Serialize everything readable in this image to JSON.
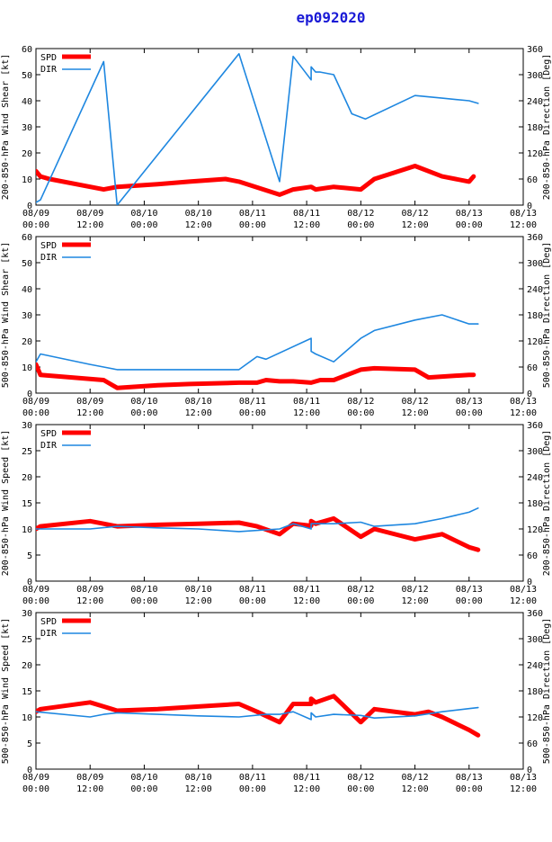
{
  "figure_title": "ep092020",
  "colors": {
    "spd": "#ff0000",
    "dir": "#1e87e0",
    "title": "#1a1ad6"
  },
  "x_ticks": [
    {
      "date": "08/09",
      "time": "00:00"
    },
    {
      "date": "08/09",
      "time": "12:00"
    },
    {
      "date": "08/10",
      "time": "00:00"
    },
    {
      "date": "08/10",
      "time": "12:00"
    },
    {
      "date": "08/11",
      "time": "00:00"
    },
    {
      "date": "08/11",
      "time": "12:00"
    },
    {
      "date": "08/12",
      "time": "00:00"
    },
    {
      "date": "08/12",
      "time": "12:00"
    },
    {
      "date": "08/13",
      "time": "00:00"
    },
    {
      "date": "08/13",
      "time": "12:00"
    }
  ],
  "chart_data": [
    {
      "type": "line",
      "title": "",
      "xlabel": "",
      "ylabel_left": "200-850-hPa Wind Shear [kt]",
      "ylabel_right": "200-850-hPa Direction [Deg]",
      "xlim": [
        0,
        108
      ],
      "ylim_left": [
        0,
        60
      ],
      "ylim_right": [
        0,
        360
      ],
      "yticks_left": [
        "0",
        "10",
        "20",
        "30",
        "40",
        "50",
        "60"
      ],
      "yticks_right": [
        "0",
        "60",
        "120",
        "180",
        "240",
        "300",
        "360"
      ],
      "legend": [
        "SPD",
        "DIR"
      ],
      "series": [
        {
          "name": "SPD",
          "axis": "left",
          "x": [
            0,
            1,
            3,
            15,
            18,
            27,
            34,
            42,
            45,
            54,
            57,
            61,
            62,
            66,
            72,
            75,
            84,
            90,
            96,
            97
          ],
          "y": [
            13,
            11,
            10,
            6,
            7,
            8,
            9,
            10,
            9,
            4,
            6,
            7,
            6,
            7,
            6,
            10,
            15,
            11,
            9,
            11
          ]
        },
        {
          "name": "DIR",
          "axis": "left",
          "x": [
            0,
            1,
            15,
            18,
            45,
            54,
            57,
            61,
            61,
            62,
            63,
            66,
            70,
            73,
            84,
            90,
            96,
            98
          ],
          "y": [
            1,
            2,
            55,
            0,
            58,
            9,
            57,
            48,
            53,
            51,
            51,
            50,
            35,
            33,
            42,
            41,
            40,
            39
          ]
        }
      ]
    },
    {
      "type": "line",
      "title": "",
      "xlabel": "",
      "ylabel_left": "500-850-hPa Wind Shear [kt]",
      "ylabel_right": "500-850-hPa Direction [Deg]",
      "xlim": [
        0,
        108
      ],
      "ylim_left": [
        0,
        60
      ],
      "ylim_right": [
        0,
        360
      ],
      "yticks_left": [
        "0",
        "10",
        "20",
        "30",
        "40",
        "50",
        "60"
      ],
      "yticks_right": [
        "0",
        "60",
        "120",
        "180",
        "240",
        "300",
        "360"
      ],
      "legend": [
        "SPD",
        "DIR"
      ],
      "series": [
        {
          "name": "SPD",
          "axis": "left",
          "x": [
            0,
            1,
            15,
            18,
            27,
            34,
            45,
            49,
            51,
            54,
            57,
            61,
            63,
            66,
            72,
            75,
            84,
            87,
            96,
            97
          ],
          "y": [
            11,
            7,
            5,
            2,
            3,
            3.5,
            4,
            4,
            5,
            4.5,
            4.5,
            4,
            5,
            5,
            9,
            9.5,
            9,
            6,
            7,
            7
          ]
        },
        {
          "name": "DIR",
          "axis": "left",
          "x": [
            0,
            1,
            12,
            15,
            18,
            24,
            27,
            36,
            45,
            49,
            51,
            61,
            61,
            62,
            66,
            72,
            75,
            84,
            90,
            96,
            98
          ],
          "y": [
            12,
            15,
            11,
            10,
            9,
            9,
            9,
            9,
            9,
            14,
            13,
            21,
            16,
            15,
            12,
            21,
            24,
            28,
            30,
            26.5,
            26.5
          ]
        }
      ]
    },
    {
      "type": "line",
      "title": "",
      "xlabel": "",
      "ylabel_left": "200-850-hPa Wind Speed [kt]",
      "ylabel_right": "200-850-hPa Direction [Deg]",
      "xlim": [
        0,
        108
      ],
      "ylim_left": [
        0,
        30
      ],
      "ylim_right": [
        0,
        360
      ],
      "yticks_left": [
        "0",
        "5",
        "10",
        "15",
        "20",
        "25",
        "30"
      ],
      "yticks_right": [
        "0",
        "60",
        "120",
        "180",
        "240",
        "300",
        "360"
      ],
      "legend": [
        "SPD",
        "DIR"
      ],
      "series": [
        {
          "name": "SPD",
          "axis": "left",
          "x": [
            0,
            1,
            12,
            15,
            18,
            27,
            36,
            45,
            49,
            54,
            57,
            61,
            61,
            62,
            66,
            72,
            75,
            84,
            90,
            96,
            98
          ],
          "y": [
            10,
            10.5,
            11.5,
            11,
            10.5,
            10.8,
            11,
            11.2,
            10.5,
            9,
            11,
            10.6,
            11.5,
            11,
            12,
            8.5,
            10,
            8,
            9,
            6.5,
            6
          ]
        },
        {
          "name": "DIR",
          "axis": "left",
          "x": [
            0,
            12,
            18,
            27,
            36,
            45,
            54,
            57,
            61,
            61,
            62,
            66,
            72,
            75,
            84,
            90,
            96,
            98
          ],
          "y": [
            10,
            10,
            10.5,
            10.2,
            10,
            9.5,
            10,
            11,
            10,
            11,
            11,
            11,
            11.3,
            10.5,
            11,
            12,
            13.2,
            14
          ]
        }
      ]
    },
    {
      "type": "line",
      "title": "",
      "xlabel": "",
      "ylabel_left": "500-850-hPa Wind Speed [kt]",
      "ylabel_right": "500-850-hPa Direction [Deg]",
      "xlim": [
        0,
        108
      ],
      "ylim_left": [
        0,
        30
      ],
      "ylim_right": [
        0,
        360
      ],
      "yticks_left": [
        "0",
        "5",
        "10",
        "15",
        "20",
        "25",
        "30"
      ],
      "yticks_right": [
        "0",
        "60",
        "120",
        "180",
        "240",
        "300",
        "360"
      ],
      "legend": [
        "SPD",
        "DIR"
      ],
      "series": [
        {
          "name": "SPD",
          "axis": "left",
          "x": [
            0,
            1,
            12,
            15,
            18,
            27,
            36,
            45,
            49,
            54,
            57,
            61,
            61,
            62,
            66,
            72,
            75,
            84,
            87,
            90,
            96,
            98
          ],
          "y": [
            11,
            11.5,
            12.8,
            12,
            11.2,
            11.5,
            12,
            12.5,
            11,
            9,
            12.5,
            12.5,
            13.5,
            12.8,
            14,
            9,
            11.5,
            10.5,
            11,
            10,
            7.5,
            6.5
          ]
        },
        {
          "name": "DIR",
          "axis": "left",
          "x": [
            0,
            12,
            15,
            18,
            27,
            36,
            45,
            51,
            54,
            57,
            61,
            61,
            62,
            66,
            72,
            75,
            84,
            90,
            96,
            98
          ],
          "y": [
            11,
            10,
            10.5,
            10.8,
            10.5,
            10.2,
            10,
            10.5,
            10.5,
            11,
            9.5,
            10.8,
            10,
            10.5,
            10.3,
            9.8,
            10.2,
            11,
            11.6,
            11.8
          ]
        }
      ]
    }
  ]
}
